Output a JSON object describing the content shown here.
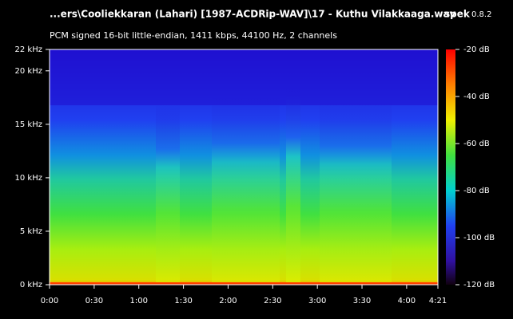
{
  "chart_data": {
    "type": "spectrogram",
    "title": "...ers\\Cooliekkaran (Lahari) [1987-ACDRip-WAV]\\17 - Kuthu Vilakkaaga.wav",
    "app": "spek",
    "version": "0.8.2",
    "subtitle": "PCM signed 16-bit little-endian, 1411 kbps, 44100 Hz, 2 channels",
    "xlim": [
      0,
      261
    ],
    "xticks": [
      {
        "value": 0,
        "label": "0:00"
      },
      {
        "value": 30,
        "label": "0:30"
      },
      {
        "value": 60,
        "label": "1:00"
      },
      {
        "value": 90,
        "label": "1:30"
      },
      {
        "value": 120,
        "label": "2:00"
      },
      {
        "value": 150,
        "label": "2:30"
      },
      {
        "value": 180,
        "label": "3:00"
      },
      {
        "value": 210,
        "label": "3:30"
      },
      {
        "value": 240,
        "label": "4:00"
      },
      {
        "value": 261,
        "label": "4:21"
      }
    ],
    "ylim": [
      0,
      22
    ],
    "yticks": [
      {
        "value": 0,
        "label": "0 kHz"
      },
      {
        "value": 5,
        "label": "5 kHz"
      },
      {
        "value": 10,
        "label": "10 kHz"
      },
      {
        "value": 15,
        "label": "15 kHz"
      },
      {
        "value": 20,
        "label": "20 kHz"
      },
      {
        "value": 22,
        "label": "22 kHz"
      }
    ],
    "zlim": [
      -120,
      -20
    ],
    "zticks": [
      {
        "value": -20,
        "label": "-20 dB"
      },
      {
        "value": -40,
        "label": "-40 dB"
      },
      {
        "value": -60,
        "label": "-60 dB"
      },
      {
        "value": -80,
        "label": "-80 dB"
      },
      {
        "value": -100,
        "label": "-100 dB"
      },
      {
        "value": -120,
        "label": "-120 dB"
      }
    ]
  }
}
